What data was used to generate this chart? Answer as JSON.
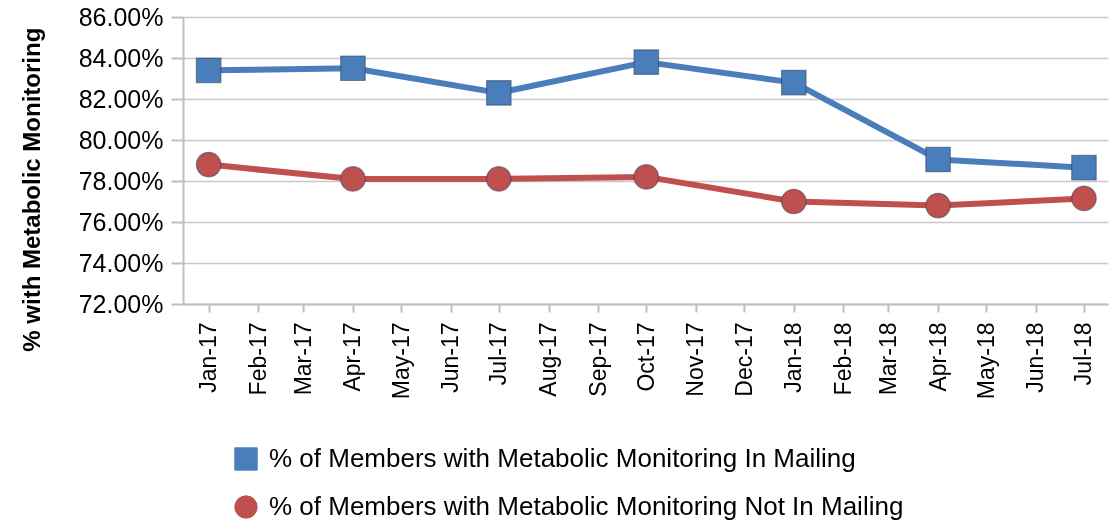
{
  "chart_data": {
    "type": "line",
    "ylabel": "% with Metabolic Monitoring",
    "x": [
      "2017-01",
      "2017-04",
      "2017-07",
      "2017-10",
      "2018-01",
      "2018-04",
      "2018-07"
    ],
    "xlim": [
      "2016-12-16",
      "2018-07-16"
    ],
    "xticks": [
      {
        "value": "2017-01",
        "label": "Jan-17"
      },
      {
        "value": "2017-02",
        "label": "Feb-17"
      },
      {
        "value": "2017-03",
        "label": "Mar-17"
      },
      {
        "value": "2017-04",
        "label": "Apr-17"
      },
      {
        "value": "2017-05",
        "label": "May-17"
      },
      {
        "value": "2017-06",
        "label": "Jun-17"
      },
      {
        "value": "2017-07",
        "label": "Jul-17"
      },
      {
        "value": "2017-08",
        "label": "Aug-17"
      },
      {
        "value": "2017-09",
        "label": "Sep-17"
      },
      {
        "value": "2017-10",
        "label": "Oct-17"
      },
      {
        "value": "2017-11",
        "label": "Nov-17"
      },
      {
        "value": "2017-12",
        "label": "Dec-17"
      },
      {
        "value": "2018-01",
        "label": "Jan-18"
      },
      {
        "value": "2018-02",
        "label": "Feb-18"
      },
      {
        "value": "2018-03",
        "label": "Mar-18"
      },
      {
        "value": "2018-04",
        "label": "Apr-18"
      },
      {
        "value": "2018-05",
        "label": "May-18"
      },
      {
        "value": "2018-06",
        "label": "Jun-18"
      },
      {
        "value": "2018-07",
        "label": "Jul-18"
      }
    ],
    "ylim": [
      72,
      86
    ],
    "yticks": [
      {
        "value": 72,
        "label": "72.00%"
      },
      {
        "value": 74,
        "label": "74.00%"
      },
      {
        "value": 76,
        "label": "76.00%"
      },
      {
        "value": 78,
        "label": "78.00%"
      },
      {
        "value": 80,
        "label": "80.00%"
      },
      {
        "value": 82,
        "label": "82.00%"
      },
      {
        "value": 84,
        "label": "84.00%"
      },
      {
        "value": 86,
        "label": "86.00%"
      }
    ],
    "grid": "y",
    "legend": "bottom",
    "series": [
      {
        "name": "% of Members with Metabolic Monitoring In Mailing",
        "color": "#4a7ebb",
        "marker": "square",
        "values": [
          83.4,
          83.5,
          82.3,
          83.8,
          82.8,
          79.05,
          78.65
        ]
      },
      {
        "name": "% of Members with Metabolic Monitoring Not In Mailing",
        "color": "#c0504d",
        "marker": "circle",
        "values": [
          78.8,
          78.1,
          78.1,
          78.2,
          77.0,
          76.8,
          77.15
        ]
      }
    ]
  }
}
